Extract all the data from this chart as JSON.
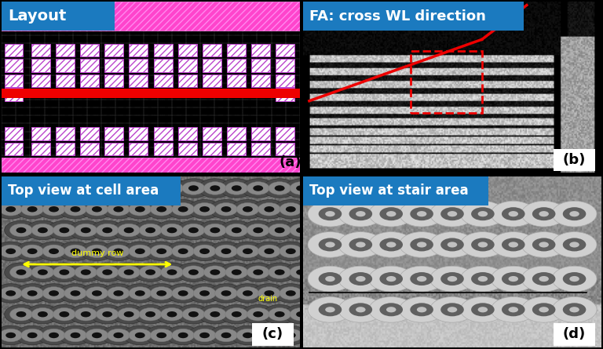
{
  "title_a": "Layout",
  "title_b": "FA: cross WL direction",
  "title_c": "Top view at cell area",
  "title_d": "Top view at stair area",
  "label_a": "(a)",
  "label_b": "(b)",
  "label_c": "(c)",
  "label_d": "(d)",
  "bg_color": "#000000",
  "panel_bg_a": "#ffffff",
  "title_box_color": "#1b7abf",
  "title_text_color": "#ffffff",
  "pink_color": "#ff44cc",
  "purple_color": "#bb44cc",
  "red_color": "#ee0000",
  "yellow_color": "#ffff00",
  "label_fontsize": 12,
  "title_fontsize": 11
}
